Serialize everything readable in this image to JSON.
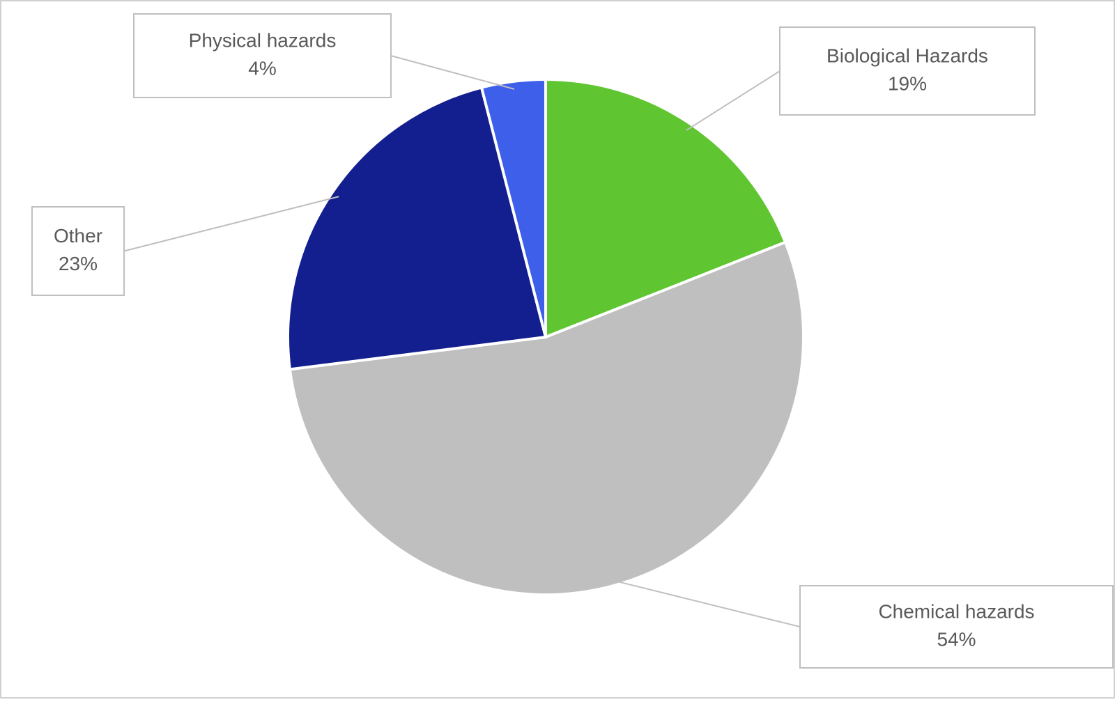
{
  "chart_data": {
    "type": "pie",
    "categories": [
      "Biological Hazards",
      "Chemical hazards",
      "Other",
      "Physical hazards"
    ],
    "values": [
      19,
      54,
      23,
      4
    ],
    "value_labels": [
      "19%",
      "54%",
      "23%",
      "4%"
    ],
    "colors": [
      "#5fc531",
      "#bfbfbf",
      "#131f8f",
      "#3d5fea"
    ]
  }
}
